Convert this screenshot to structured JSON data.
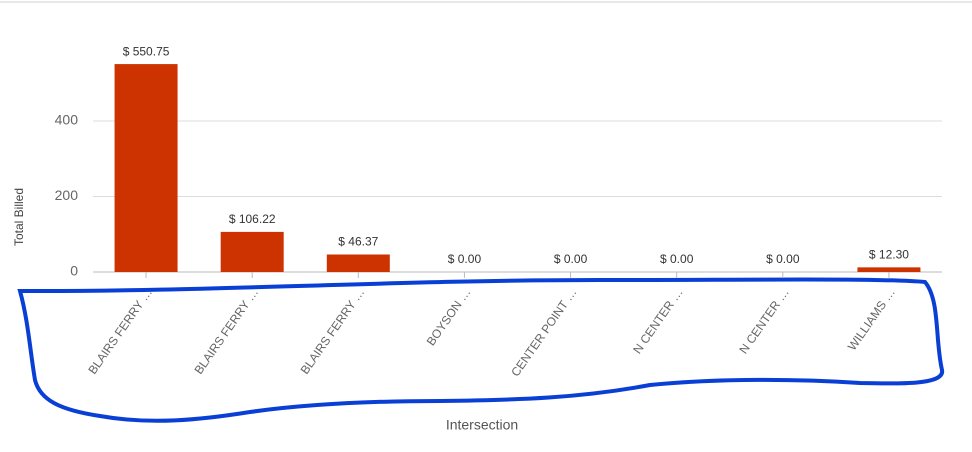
{
  "chart_data": {
    "type": "bar",
    "x_label": "Intersection",
    "y_label": "Total Billed",
    "categories": [
      "BLAIRS FERRY …",
      "BLAIRS FERRY …",
      "BLAIRS FERRY …",
      "BOYSON …",
      "CENTER POINT …",
      "N CENTER …",
      "N CENTER …",
      "WILLIAMS …"
    ],
    "values": [
      550.75,
      106.22,
      46.37,
      0,
      0,
      0,
      0,
      12.3
    ],
    "value_labels": [
      "$ 550.75",
      "$ 106.22",
      "$ 46.37",
      "$ 0.00",
      "$ 0.00",
      "$ 0.00",
      "$ 0.00",
      "$ 12.30"
    ],
    "color": "#cc3300",
    "ylim": [
      0,
      600
    ],
    "yticks": [
      0,
      200,
      400
    ],
    "grid": true
  }
}
